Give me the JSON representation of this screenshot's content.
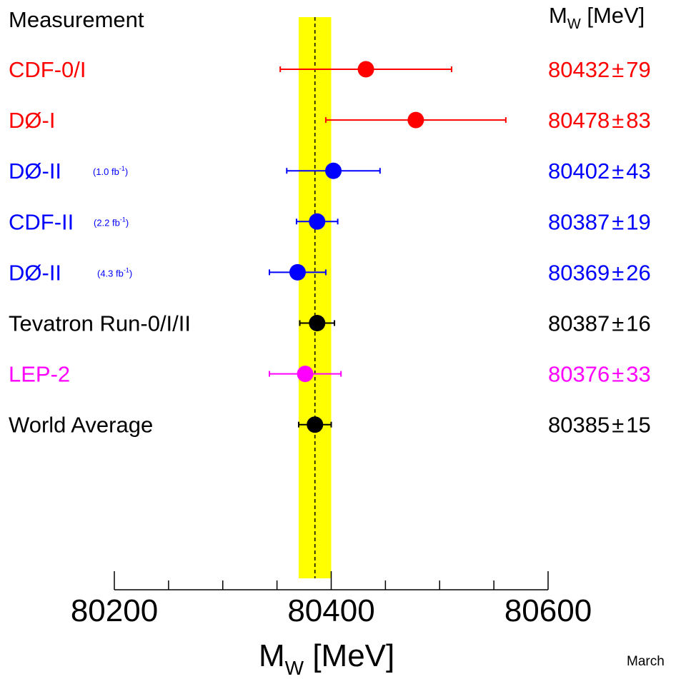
{
  "header": {
    "measurement_label": "Measurement",
    "mw_label_main": "M",
    "mw_label_sub": "W",
    "mw_label_unit": " [MeV]"
  },
  "footer": {
    "date_label": "March"
  },
  "chart_data": {
    "type": "scatter",
    "title": "",
    "xlabel": "M_W [MeV]",
    "xlabel_main": "M",
    "xlabel_sub": "W",
    "xlabel_unit": " [MeV]",
    "xlim": [
      80200,
      80600
    ],
    "xticks_major": [
      80200,
      80400,
      80600
    ],
    "xticks_minor_step": 50,
    "band": {
      "center": 80385,
      "half_width": 15,
      "color": "#ffff00"
    },
    "reference_line": 80385,
    "entries": [
      {
        "label": "CDF-0/I",
        "lumi": "",
        "value": 80432,
        "error": 79,
        "value_text": "80432",
        "pm": "±",
        "error_text": "79",
        "color": "#ff0000"
      },
      {
        "label": "DØ-I",
        "lumi": "",
        "value": 80478,
        "error": 83,
        "value_text": "80478",
        "pm": "±",
        "error_text": "83",
        "color": "#ff0000"
      },
      {
        "label": "DØ-II",
        "lumi": "(1.0 fb-1)",
        "lumi_text": "(1.0 fb",
        "lumi_sup": "-1",
        "lumi_close": ")",
        "value": 80402,
        "error": 43,
        "value_text": "80402",
        "pm": "±",
        "error_text": "43",
        "color": "#0000ff"
      },
      {
        "label": "CDF-II",
        "lumi": "(2.2 fb-1)",
        "lumi_text": "(2.2 fb",
        "lumi_sup": "-1",
        "lumi_close": ")",
        "value": 80387,
        "error": 19,
        "value_text": "80387",
        "pm": "±",
        "error_text": "19",
        "color": "#0000ff"
      },
      {
        "label": "DØ-II",
        "lumi": "(4.3 fb-1)",
        "lumi_text": "(4.3 fb",
        "lumi_sup": "-1",
        "lumi_close": ")",
        "value": 80369,
        "error": 26,
        "value_text": "80369",
        "pm": "±",
        "error_text": "26",
        "color": "#0000ff"
      },
      {
        "label": "Tevatron Run-0/I/II",
        "lumi": "",
        "value": 80387,
        "error": 16,
        "value_text": "80387",
        "pm": "±",
        "error_text": "16",
        "color": "#000000"
      },
      {
        "label": "LEP-2",
        "lumi": "",
        "value": 80376,
        "error": 33,
        "value_text": "80376",
        "pm": "±",
        "error_text": "33",
        "color": "#ff00ff"
      },
      {
        "label": "World Average",
        "lumi": "",
        "value": 80385,
        "error": 15,
        "value_text": "80385",
        "pm": "±",
        "error_text": "15",
        "color": "#000000"
      }
    ]
  }
}
